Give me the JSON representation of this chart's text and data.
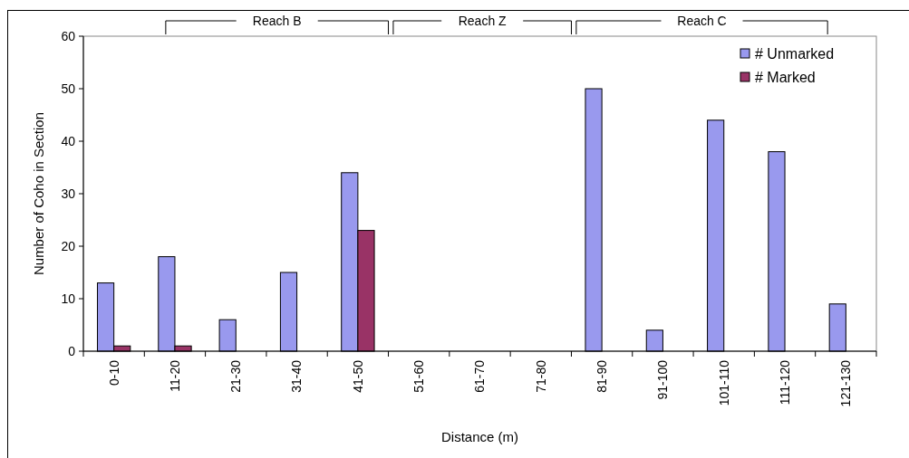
{
  "chart_data": {
    "type": "bar",
    "xlabel": "Distance (m)",
    "ylabel": "Number of Coho in Section",
    "categories": [
      "0-10",
      "11-20",
      "21-30",
      "31-40",
      "41-50",
      "51-60",
      "61-70",
      "71-80",
      "81-90",
      "91-100",
      "101-110",
      "111-120",
      "121-130"
    ],
    "series": [
      {
        "name": "# Unmarked",
        "color": "#9999ee",
        "values": [
          13,
          18,
          6,
          15,
          34,
          null,
          null,
          null,
          50,
          4,
          44,
          38,
          9
        ]
      },
      {
        "name": "# Marked",
        "color": "#993366",
        "values": [
          1,
          1,
          null,
          null,
          23,
          null,
          null,
          null,
          null,
          null,
          null,
          null,
          null
        ]
      }
    ],
    "ylim": [
      0,
      60
    ],
    "yticks": [
      0,
      10,
      20,
      30,
      40,
      50,
      60
    ],
    "grid": false,
    "legend": "top right",
    "annotations": [
      "Reach B",
      "Reach Z",
      "Reach C"
    ]
  }
}
